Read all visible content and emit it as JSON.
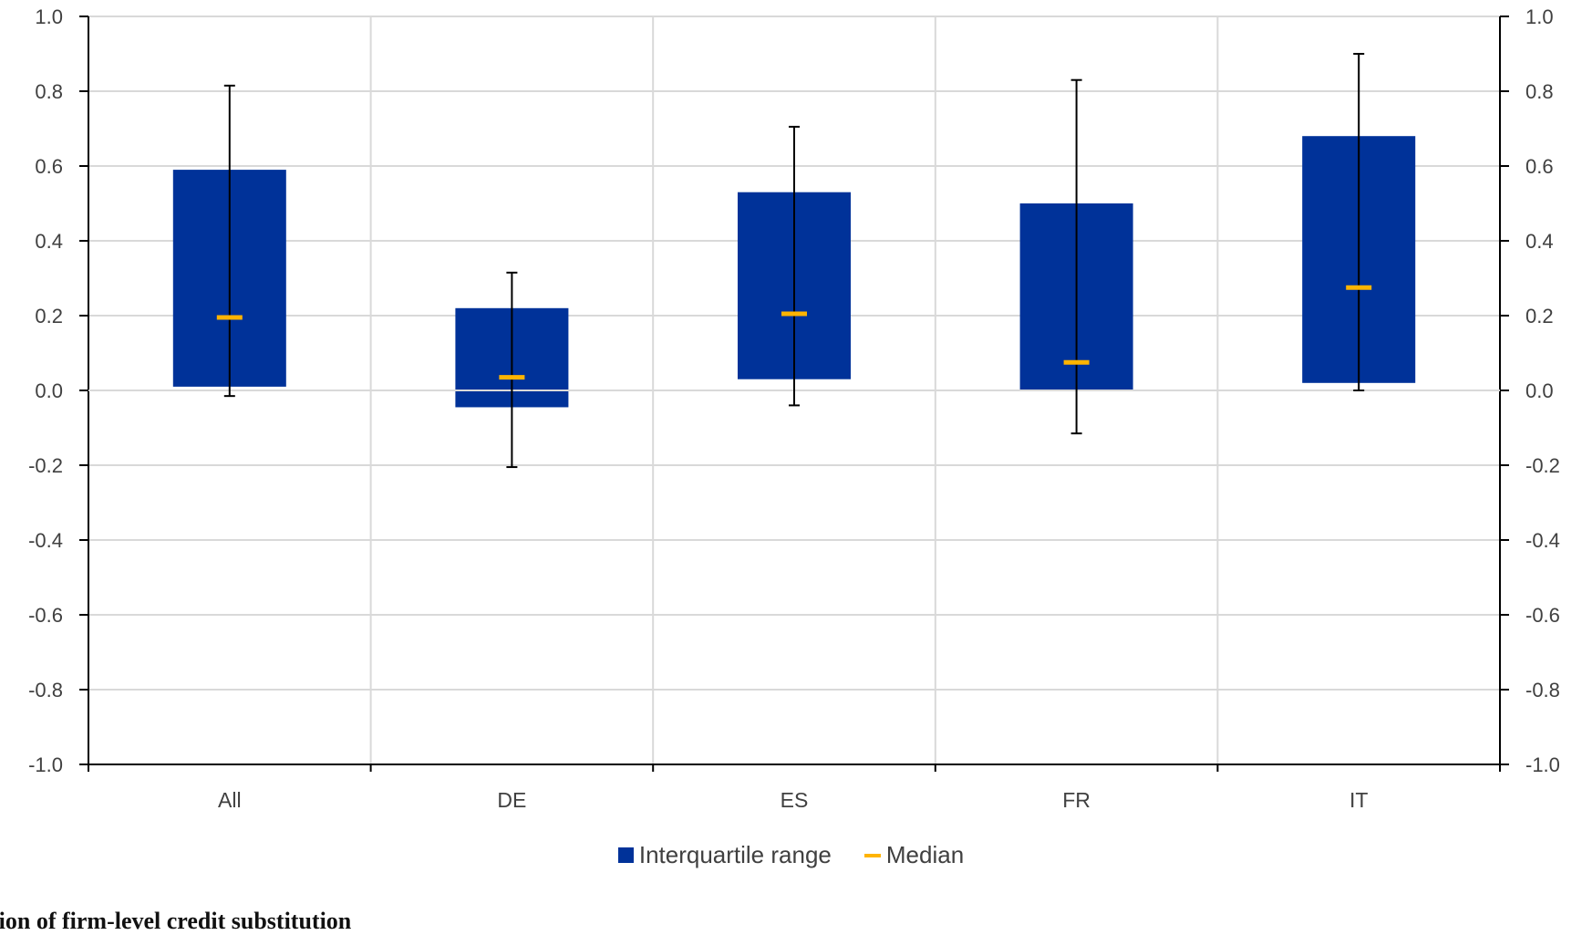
{
  "chart_data": {
    "type": "box",
    "categories": [
      "All",
      "DE",
      "ES",
      "FR",
      "IT"
    ],
    "series": [
      {
        "name": "Interquartile range",
        "q1": [
          0.01,
          -0.045,
          0.03,
          0.0,
          0.02
        ],
        "q3": [
          0.59,
          0.22,
          0.53,
          0.5,
          0.68
        ],
        "whisker_low": [
          -0.015,
          -0.205,
          -0.04,
          -0.115,
          0.0
        ],
        "whisker_high": [
          0.815,
          0.315,
          0.705,
          0.83,
          0.9
        ]
      },
      {
        "name": "Median",
        "values": [
          0.195,
          0.035,
          0.205,
          0.075,
          0.275
        ]
      }
    ],
    "ylim": [
      -1.0,
      1.0
    ],
    "yticks": [
      "1.0",
      "0.8",
      "0.6",
      "0.4",
      "0.2",
      "0.0",
      "-0.2",
      "-0.4",
      "-0.6",
      "-0.8",
      "-1.0"
    ],
    "ytick_values": [
      1.0,
      0.8,
      0.6,
      0.4,
      0.2,
      0.0,
      -0.2,
      -0.4,
      -0.6,
      -0.8,
      -1.0
    ],
    "grid": true,
    "legend_position": "bottom-center",
    "colors": {
      "box": "#003299",
      "median": "#FFB400",
      "whisker": "#000000",
      "grid": "#d9d9d9"
    }
  },
  "legend": {
    "iqr_label": "Interquartile range",
    "median_label": "Median"
  },
  "caption": "tion of firm-level credit substitution"
}
